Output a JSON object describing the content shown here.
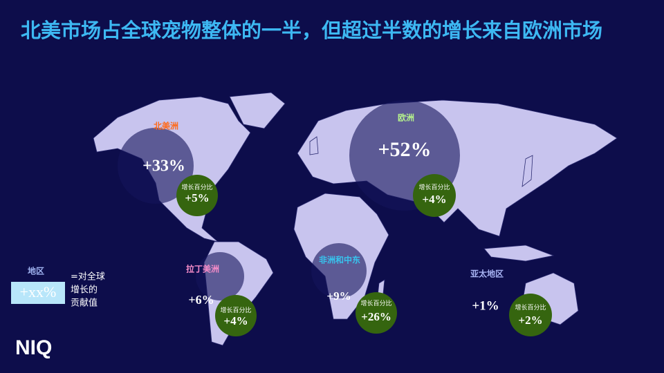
{
  "title": "北美市场占全球宠物整体的一半，但超过半数的增长来自欧洲市场",
  "regions": [
    {
      "name": "北美洲",
      "share": "+33%",
      "growth_label": "增长百分比",
      "growth": "+5%"
    },
    {
      "name": "欧洲",
      "share": "+52%",
      "growth_label": "增长百分比",
      "growth": "+4%"
    },
    {
      "name": "拉丁美洲",
      "share": "+6%",
      "growth_label": "增长百分比",
      "growth": "+4%"
    },
    {
      "name": "非洲和中东",
      "share": "+9%",
      "growth_label": "增长百分比",
      "growth": "+26%"
    },
    {
      "name": "亚太地区",
      "share": "+1%",
      "growth_label": "增长百分比",
      "growth": "+2%"
    }
  ],
  "legend": {
    "region_label": "地区",
    "sample": "+xx%",
    "note_lines": [
      "=对全球",
      "增长的",
      "贡献值"
    ]
  },
  "logo": "NIQ"
}
